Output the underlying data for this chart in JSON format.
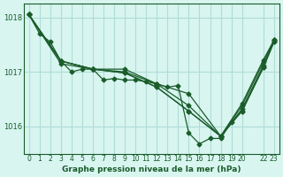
{
  "background_color": "#d8f5f0",
  "grid_color": "#b0ddd8",
  "line_color": "#1a5c2a",
  "text_color": "#1a5c2a",
  "xlabel": "Graphe pression niveau de la mer (hPa)",
  "ylim": [
    1015.5,
    1018.25
  ],
  "xlim": [
    -0.5,
    23.5
  ],
  "yticks": [
    1016,
    1017,
    1018
  ],
  "xticks": [
    0,
    1,
    2,
    3,
    4,
    5,
    6,
    7,
    8,
    9,
    10,
    11,
    12,
    13,
    14,
    15,
    16,
    17,
    18,
    19,
    20,
    22,
    23
  ],
  "xtick_labels": [
    "0",
    "1",
    "2",
    "3",
    "4",
    "5",
    "6",
    "7",
    "8",
    "9",
    "10",
    "11",
    "12",
    "13",
    "14",
    "15",
    "16",
    "17",
    "18",
    "19",
    "20",
    "22",
    "23"
  ],
  "series": [
    {
      "x": [
        0,
        1,
        2,
        3,
        4,
        5,
        6,
        7,
        8,
        9,
        10,
        11,
        12,
        13,
        14,
        15,
        16,
        17,
        18,
        19,
        20,
        22,
        23
      ],
      "y": [
        1018.05,
        1017.7,
        1017.55,
        1017.2,
        1017.0,
        1017.05,
        1017.05,
        1016.85,
        1016.88,
        1016.85,
        1016.85,
        1016.82,
        1016.78,
        1016.72,
        1016.75,
        1015.88,
        1015.68,
        1015.78,
        1015.78,
        1016.08,
        1016.28,
        1017.08,
        1017.55
      ]
    },
    {
      "x": [
        0,
        3,
        6,
        9,
        12,
        15,
        18,
        20,
        22,
        23
      ],
      "y": [
        1018.05,
        1017.15,
        1017.05,
        1017.05,
        1016.78,
        1016.6,
        1015.82,
        1016.28,
        1017.08,
        1017.55
      ]
    },
    {
      "x": [
        0,
        3,
        6,
        9,
        12,
        15,
        18,
        20,
        22,
        23
      ],
      "y": [
        1018.05,
        1017.2,
        1017.05,
        1017.0,
        1016.78,
        1016.38,
        1015.82,
        1016.32,
        1017.12,
        1017.58
      ]
    },
    {
      "x": [
        0,
        3,
        6,
        9,
        12,
        15,
        18,
        20,
        22,
        23
      ],
      "y": [
        1018.05,
        1017.2,
        1017.05,
        1016.98,
        1016.72,
        1016.28,
        1015.82,
        1016.38,
        1017.18,
        1017.58
      ]
    },
    {
      "x": [
        0,
        3,
        6,
        9,
        12,
        15,
        18,
        20,
        22,
        23
      ],
      "y": [
        1018.05,
        1017.2,
        1017.05,
        1016.98,
        1016.72,
        1016.28,
        1015.82,
        1016.42,
        1017.22,
        1017.58
      ]
    }
  ]
}
